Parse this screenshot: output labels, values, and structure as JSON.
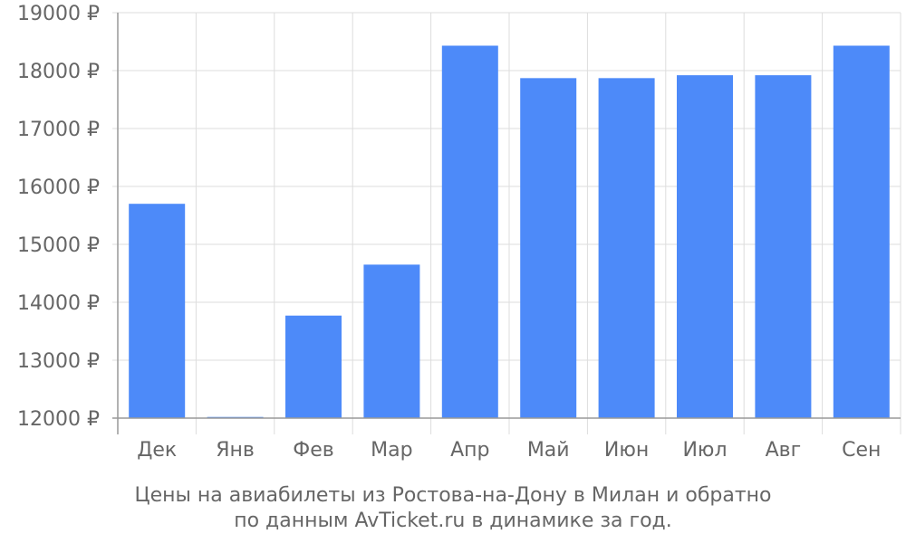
{
  "chart_data": {
    "type": "bar",
    "categories": [
      "Дек",
      "Янв",
      "Фев",
      "Мар",
      "Апр",
      "Май",
      "Июн",
      "Июл",
      "Авг",
      "Сен"
    ],
    "values": [
      15700,
      12020,
      13770,
      14650,
      18430,
      17870,
      17870,
      17920,
      17920,
      18430
    ],
    "ylim": [
      12000,
      19000
    ],
    "yticks": [
      12000,
      13000,
      14000,
      15000,
      16000,
      17000,
      18000,
      19000
    ],
    "ytick_suffix": " ₽",
    "grid": true,
    "colors": {
      "bar": "#4d8af9",
      "grid": "#dddddd",
      "axis": "#999999",
      "text": "#666666"
    }
  },
  "caption": {
    "line1": "Цены на авиабилеты из Ростова-на-Дону в Милан и обратно",
    "line2": "по данным AvTicket.ru в динамике за год."
  }
}
